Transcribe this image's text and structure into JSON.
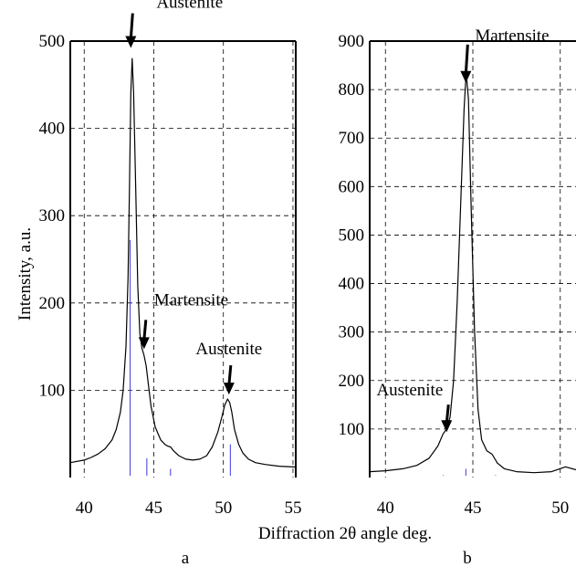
{
  "figure": {
    "ylabel": "Intensity, a.u.",
    "xlabel": "Diffraction 2θ angle deg."
  },
  "chart_data": [
    {
      "type": "line",
      "panel_label": "a",
      "xlim": [
        39,
        55.2
      ],
      "ylim": [
        0,
        500
      ],
      "xticks": [
        40,
        45,
        50,
        55
      ],
      "yticks": [
        100,
        200,
        300,
        400,
        500
      ],
      "grid": true,
      "series": [
        {
          "x": [
            39.0,
            40.0,
            40.5,
            41.0,
            41.5,
            42.0,
            42.3,
            42.6,
            42.8,
            43.0,
            43.15,
            43.25,
            43.35,
            43.45,
            43.55,
            43.7,
            43.85,
            44.0,
            44.15,
            44.3,
            44.45,
            44.6,
            44.8,
            45.1,
            45.5,
            45.8,
            46.0,
            46.2,
            46.4,
            46.8,
            47.3,
            47.8,
            48.3,
            48.8,
            49.2,
            49.6,
            49.9,
            50.1,
            50.3,
            50.45,
            50.6,
            50.8,
            51.1,
            51.4,
            51.8,
            52.3,
            53.0,
            54.0,
            55.2
          ],
          "y": [
            17,
            20,
            23,
            27,
            33,
            43,
            55,
            75,
            100,
            150,
            230,
            330,
            440,
            480,
            440,
            330,
            220,
            165,
            148,
            140,
            128,
            108,
            82,
            58,
            43,
            38,
            36,
            35,
            31,
            25,
            21,
            20,
            21,
            25,
            35,
            52,
            70,
            83,
            90,
            86,
            75,
            55,
            38,
            28,
            21,
            17,
            15,
            13,
            12
          ]
        }
      ],
      "reference_lines": [
        {
          "x": 43.3,
          "height": 272
        },
        {
          "x": 44.5,
          "height": 22
        },
        {
          "x": 46.2,
          "height": 10
        },
        {
          "x": 50.5,
          "height": 38
        }
      ],
      "annotations": [
        {
          "text": "Austenite",
          "x": 43.35,
          "y": 490
        },
        {
          "text": "Martensite",
          "x": 44.3,
          "y": 145
        },
        {
          "text": "Austenite",
          "x": 50.4,
          "y": 93
        }
      ]
    },
    {
      "type": "line",
      "panel_label": "b",
      "xlim": [
        39.1,
        50.9
      ],
      "ylim": [
        0,
        900
      ],
      "xticks": [
        40,
        45,
        50
      ],
      "yticks": [
        100,
        200,
        300,
        400,
        500,
        600,
        700,
        800,
        900
      ],
      "grid": true,
      "series": [
        {
          "x": [
            39.1,
            40.0,
            41.0,
            41.8,
            42.5,
            43.0,
            43.3,
            43.5,
            43.7,
            43.9,
            44.1,
            44.3,
            44.5,
            44.62,
            44.75,
            44.9,
            45.1,
            45.3,
            45.5,
            45.8,
            46.1,
            46.4,
            46.8,
            47.5,
            48.5,
            49.5,
            50.3,
            50.9
          ],
          "y": [
            12,
            14,
            18,
            25,
            40,
            65,
            90,
            100,
            125,
            200,
            360,
            560,
            760,
            835,
            780,
            560,
            300,
            140,
            78,
            55,
            48,
            30,
            18,
            12,
            10,
            12,
            22,
            16
          ]
        }
      ],
      "reference_lines": [
        {
          "x": 43.3,
          "height": 5
        },
        {
          "x": 44.6,
          "height": 18
        },
        {
          "x": 46.3,
          "height": 5
        }
      ],
      "annotations": [
        {
          "text": "Martensite",
          "x": 44.6,
          "y": 810
        },
        {
          "text": "Austenite",
          "x": 43.5,
          "y": 90
        }
      ]
    }
  ]
}
